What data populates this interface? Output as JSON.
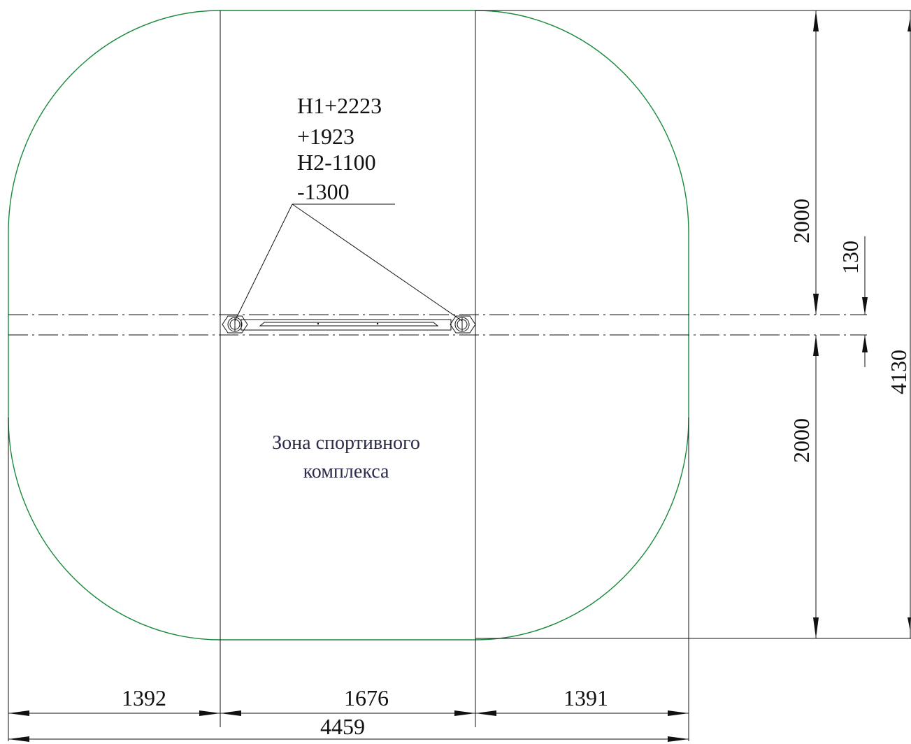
{
  "elevation_note": {
    "lines": [
      "H1+2223",
      "+1923",
      "H2-1100",
      "-1300"
    ]
  },
  "zone_label": {
    "lines": [
      "Зона спортивного",
      "комплекса"
    ]
  },
  "dimensions": {
    "horizontal": {
      "left_part": "1392",
      "middle_part": "1676",
      "right_part": "1391",
      "overall": "4459"
    },
    "vertical": {
      "top_part": "2000",
      "middle_gap": "130",
      "bottom_part": "2000",
      "overall": "4130"
    }
  },
  "colors": {
    "zone_outline": "#1a8a3c",
    "lines": "#111111",
    "label_text": "#2b2b4a"
  }
}
